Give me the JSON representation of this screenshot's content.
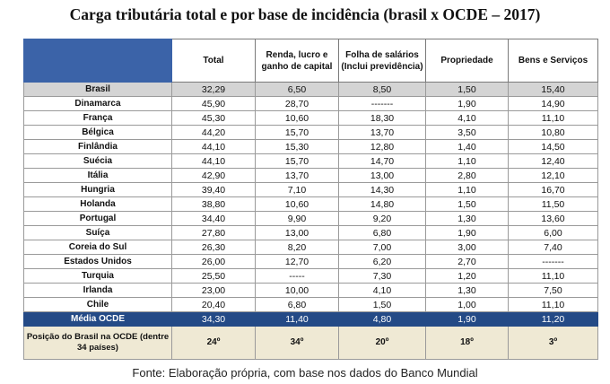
{
  "title": "Carga tributária total e por base de incidência (brasil x OCDE – 2017)",
  "headers": [
    "",
    "Total",
    "Renda, lucro e ganho de capital",
    "Folha de salários (Inclui previdência)",
    "Propriedade",
    "Bens e Serviços"
  ],
  "rows": [
    [
      "Brasil",
      "32,29",
      "6,50",
      "8,50",
      "1,50",
      "15,40"
    ],
    [
      "Dinamarca",
      "45,90",
      "28,70",
      "-------",
      "1,90",
      "14,90"
    ],
    [
      "França",
      "45,30",
      "10,60",
      "18,30",
      "4,10",
      "11,10"
    ],
    [
      "Bélgica",
      "44,20",
      "15,70",
      "13,70",
      "3,50",
      "10,80"
    ],
    [
      "Finlândia",
      "44,10",
      "15,30",
      "12,80",
      "1,40",
      "14,50"
    ],
    [
      "Suécia",
      "44,10",
      "15,70",
      "14,70",
      "1,10",
      "12,40"
    ],
    [
      "Itália",
      "42,90",
      "13,70",
      "13,00",
      "2,80",
      "12,10"
    ],
    [
      "Hungria",
      "39,40",
      "7,10",
      "14,30",
      "1,10",
      "16,70"
    ],
    [
      "Holanda",
      "38,80",
      "10,60",
      "14,80",
      "1,50",
      "11,50"
    ],
    [
      "Portugal",
      "34,40",
      "9,90",
      "9,20",
      "1,30",
      "13,60"
    ],
    [
      "Suíça",
      "27,80",
      "13,00",
      "6,80",
      "1,90",
      "6,00"
    ],
    [
      "Coreia do Sul",
      "26,30",
      "8,20",
      "7,00",
      "3,00",
      "7,40"
    ],
    [
      "Estados Unidos",
      "26,00",
      "12,70",
      "6,20",
      "2,70",
      "-------"
    ],
    [
      "Turquia",
      "25,50",
      "-----",
      "7,30",
      "1,20",
      "11,10"
    ],
    [
      "Irlanda",
      "23,00",
      "10,00",
      "4,10",
      "1,30",
      "7,50"
    ],
    [
      "Chile",
      "20,40",
      "6,80",
      "1,50",
      "1,00",
      "11,10"
    ]
  ],
  "media": [
    "Média OCDE",
    "34,30",
    "11,40",
    "4,80",
    "1,90",
    "11,20"
  ],
  "position": [
    "Posição do Brasil na OCDE (dentre 34 países)",
    "24º",
    "34º",
    "20º",
    "18º",
    "3º"
  ],
  "source": "Fonte: Elaboração própria, com base nos dados do Banco Mundial",
  "colors": {
    "header_corner": "#3b63a8",
    "media_row": "#244a86",
    "brasil_row": "#d4d4d4",
    "position_row": "#efe9d4"
  }
}
